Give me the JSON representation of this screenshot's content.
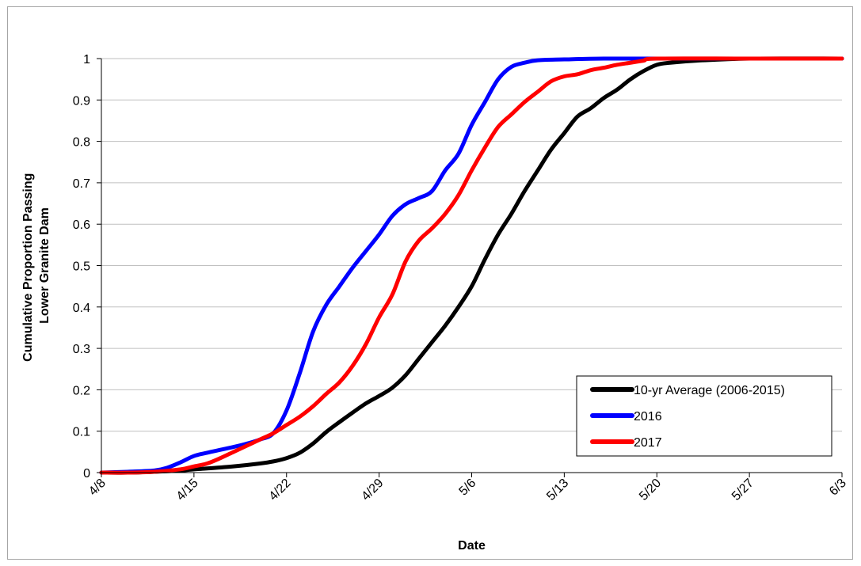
{
  "chart_data": {
    "type": "line",
    "xlabel": "Date",
    "ylabel_lines": [
      "Cumulative Proportion Passing",
      "Lower Granite Dam"
    ],
    "x_ticks": [
      "4/8",
      "4/15",
      "4/22",
      "4/29",
      "5/6",
      "5/13",
      "5/20",
      "5/27",
      "6/3"
    ],
    "y_ticks": [
      "0",
      "0.1",
      "0.2",
      "0.3",
      "0.4",
      "0.5",
      "0.6",
      "0.7",
      "0.8",
      "0.9",
      "1"
    ],
    "xlim": [
      "4/8",
      "6/3"
    ],
    "ylim": [
      0,
      1
    ],
    "grid": "horizontal",
    "legend_position": "bottom-right",
    "series": [
      {
        "name": "10-yr Average (2006-2015)",
        "color": "#000000",
        "x": [
          "4/8",
          "4/10",
          "4/12",
          "4/14",
          "4/15",
          "4/16",
          "4/18",
          "4/20",
          "4/21",
          "4/22",
          "4/23",
          "4/24",
          "4/25",
          "4/26",
          "4/27",
          "4/28",
          "4/29",
          "4/30",
          "5/1",
          "5/2",
          "5/3",
          "5/4",
          "5/5",
          "5/6",
          "5/7",
          "5/8",
          "5/9",
          "5/10",
          "5/11",
          "5/12",
          "5/13",
          "5/14",
          "5/15",
          "5/16",
          "5/17",
          "5/18",
          "5/19",
          "5/20",
          "5/21",
          "5/23",
          "5/27",
          "6/3"
        ],
        "y": [
          0.0,
          0.0,
          0.002,
          0.005,
          0.008,
          0.01,
          0.015,
          0.022,
          0.027,
          0.035,
          0.048,
          0.07,
          0.098,
          0.122,
          0.145,
          0.167,
          0.185,
          0.205,
          0.235,
          0.275,
          0.315,
          0.355,
          0.4,
          0.45,
          0.515,
          0.575,
          0.625,
          0.68,
          0.73,
          0.78,
          0.82,
          0.86,
          0.88,
          0.905,
          0.925,
          0.95,
          0.97,
          0.985,
          0.99,
          0.995,
          1.0,
          1.0
        ]
      },
      {
        "name": "2016",
        "color": "#0000ff",
        "x": [
          "4/8",
          "4/10",
          "4/12",
          "4/13",
          "4/14",
          "4/15",
          "4/16",
          "4/17",
          "4/18",
          "4/19",
          "4/20",
          "4/21",
          "4/22",
          "4/23",
          "4/24",
          "4/25",
          "4/26",
          "4/27",
          "4/28",
          "4/29",
          "4/30",
          "5/1",
          "5/2",
          "5/3",
          "5/4",
          "5/5",
          "5/6",
          "5/7",
          "5/8",
          "5/9",
          "5/10",
          "5/11",
          "5/13",
          "5/16",
          "5/20",
          "5/27",
          "6/3"
        ],
        "y": [
          0.0,
          0.002,
          0.005,
          0.012,
          0.025,
          0.04,
          0.048,
          0.055,
          0.062,
          0.07,
          0.08,
          0.095,
          0.15,
          0.24,
          0.34,
          0.405,
          0.45,
          0.495,
          0.535,
          0.575,
          0.62,
          0.648,
          0.663,
          0.68,
          0.73,
          0.77,
          0.84,
          0.895,
          0.95,
          0.98,
          0.99,
          0.996,
          0.998,
          1.0,
          1.0,
          1.0,
          1.0
        ]
      },
      {
        "name": "2017",
        "color": "#ff0000",
        "x": [
          "4/8",
          "4/10",
          "4/12",
          "4/14",
          "4/15",
          "4/16",
          "4/17",
          "4/18",
          "4/19",
          "4/20",
          "4/21",
          "4/22",
          "4/23",
          "4/24",
          "4/25",
          "4/26",
          "4/27",
          "4/28",
          "4/29",
          "4/30",
          "5/1",
          "5/2",
          "5/3",
          "5/4",
          "5/5",
          "5/6",
          "5/7",
          "5/8",
          "5/9",
          "5/10",
          "5/11",
          "5/12",
          "5/13",
          "5/14",
          "5/15",
          "5/16",
          "5/17",
          "5/18",
          "5/19",
          "5/20",
          "5/27",
          "6/3"
        ],
        "y": [
          0.0,
          0.0,
          0.002,
          0.008,
          0.015,
          0.022,
          0.035,
          0.05,
          0.065,
          0.08,
          0.095,
          0.115,
          0.135,
          0.16,
          0.19,
          0.218,
          0.258,
          0.31,
          0.375,
          0.43,
          0.51,
          0.56,
          0.59,
          0.625,
          0.67,
          0.73,
          0.785,
          0.835,
          0.865,
          0.895,
          0.92,
          0.945,
          0.957,
          0.962,
          0.972,
          0.978,
          0.985,
          0.99,
          0.995,
          1.0,
          1.0,
          1.0
        ]
      }
    ]
  }
}
